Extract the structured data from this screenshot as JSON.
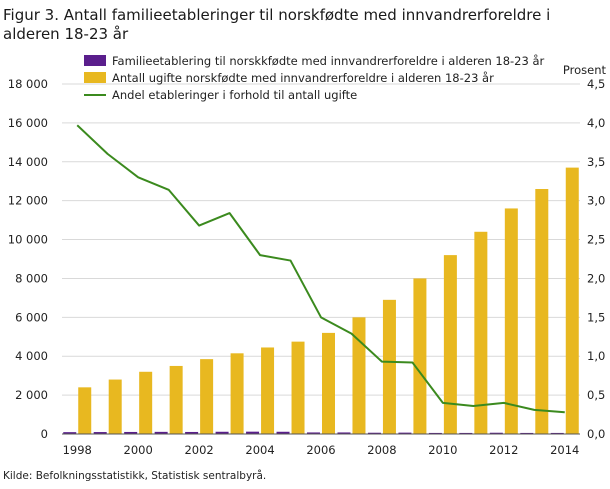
{
  "title": "Figur 3. Antall familieetableringer til norskfødte med innvandrerforeldre i alderen 18-23 år",
  "source": "Kilde: Befolkningsstatistikk, Statistisk sentralbyrå.",
  "colors": {
    "bars_primary": "#e8b820",
    "bars_secondary": "#5a1e8c",
    "line": "#3b8a1e",
    "grid": "#d9d9d9"
  },
  "chart_data": {
    "type": "bar",
    "years": [
      1998,
      1999,
      2000,
      2001,
      2002,
      2003,
      2004,
      2005,
      2006,
      2007,
      2008,
      2009,
      2010,
      2011,
      2012,
      2013,
      2014
    ],
    "x_tick_labels": [
      "1998",
      "2000",
      "2002",
      "2004",
      "2006",
      "2008",
      "2010",
      "2012",
      "2014"
    ],
    "series": [
      {
        "name": "Familieetablering til norskkfødte med innvandrerforeldre i alderen 18-23 år",
        "axis": "left",
        "kind": "bar",
        "values": [
          95,
          100,
          105,
          110,
          105,
          115,
          120,
          115,
          80,
          80,
          65,
          70,
          55,
          55,
          65,
          55,
          55
        ]
      },
      {
        "name": "Antall ugifte norskfødte med innvandrerforeldre i alderen 18-23 år",
        "axis": "left",
        "kind": "bar",
        "values": [
          2400,
          2800,
          3200,
          3500,
          3850,
          4150,
          4450,
          4750,
          5200,
          6000,
          6900,
          8000,
          9200,
          10400,
          11600,
          12600,
          13700
        ]
      },
      {
        "name": "Andel etableringer i forhold til antall ugifte",
        "axis": "right",
        "kind": "line",
        "values": [
          3.97,
          3.6,
          3.3,
          3.14,
          2.68,
          2.84,
          2.3,
          2.23,
          1.5,
          1.29,
          0.93,
          0.92,
          0.4,
          0.36,
          0.4,
          0.31,
          0.28
        ]
      }
    ],
    "y_left": {
      "min": 0,
      "max": 18000,
      "step": 2000,
      "tick_labels": [
        "0",
        "2 000",
        "4 000",
        "6 000",
        "8 000",
        "10 000",
        "12 000",
        "14 000",
        "16 000",
        "18 000"
      ]
    },
    "y_right": {
      "label": "Prosent",
      "min": 0,
      "max": 4.5,
      "step": 0.5,
      "tick_labels": [
        "0,0",
        "0,5",
        "1,0",
        "1,5",
        "2,0",
        "2,5",
        "3,0",
        "3,5",
        "4,0",
        "4,5"
      ]
    },
    "legend_position": "top-center",
    "grid": true
  }
}
